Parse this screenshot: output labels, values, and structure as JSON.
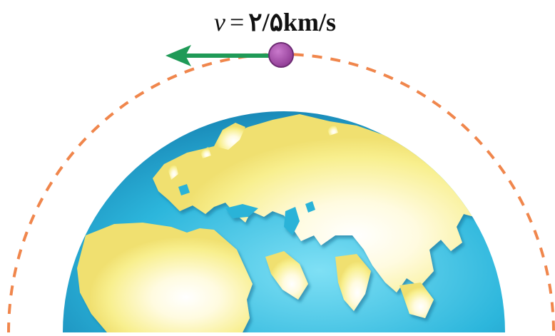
{
  "velocity": {
    "symbol": "v",
    "equals": "=",
    "value": "۲/۵km/s"
  },
  "colors": {
    "orbit": "#f0864c",
    "arrow": "#1f9a57",
    "satellite": "#a24aa6",
    "satellite_edge": "#6d2b73",
    "ocean": "#2ab3d8",
    "land": "#f7ee8a",
    "land_highlight": "#ffffff"
  },
  "icons": {
    "satellite": "satellite-dot-icon",
    "arrow": "velocity-arrow-icon",
    "earth": "earth-globe-icon"
  }
}
